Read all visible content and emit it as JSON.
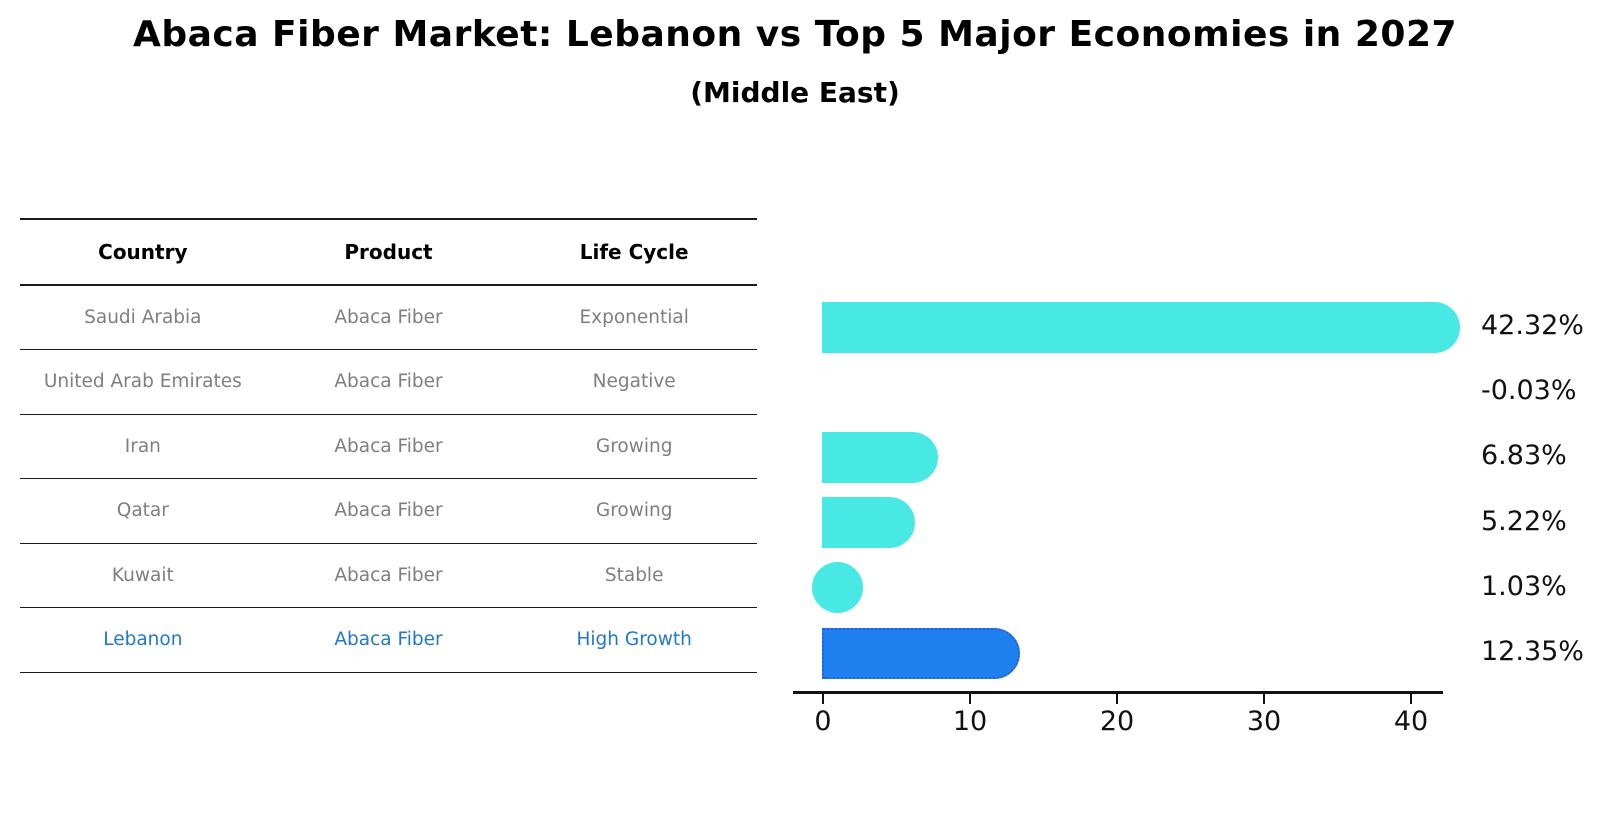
{
  "title": "Abaca Fiber Market: Lebanon vs Top 5 Major Economies in 2027",
  "subtitle": "(Middle East)",
  "table": {
    "headers": [
      "Country",
      "Product",
      "Life Cycle"
    ],
    "rows": [
      {
        "country": "Saudi Arabia",
        "product": "Abaca Fiber",
        "life_cycle": "Exponential",
        "highlight": false
      },
      {
        "country": "United Arab Emirates",
        "product": "Abaca Fiber",
        "life_cycle": "Negative",
        "highlight": false
      },
      {
        "country": "Iran",
        "product": "Abaca Fiber",
        "life_cycle": "Growing",
        "highlight": false
      },
      {
        "country": "Qatar",
        "product": "Abaca Fiber",
        "life_cycle": "Growing",
        "highlight": false
      },
      {
        "country": "Kuwait",
        "product": "Abaca Fiber",
        "life_cycle": "Stable",
        "highlight": false
      },
      {
        "country": "Lebanon",
        "product": "Abaca Fiber",
        "life_cycle": "High Growth",
        "highlight": true
      }
    ]
  },
  "chart_data": {
    "type": "bar",
    "orientation": "horizontal",
    "title": "Abaca Fiber Market: Lebanon vs Top 5 Major Economies in 2027",
    "subtitle": "(Middle East)",
    "categories": [
      "Saudi Arabia",
      "United Arab Emirates",
      "Iran",
      "Qatar",
      "Kuwait",
      "Lebanon"
    ],
    "values": [
      42.32,
      -0.03,
      6.83,
      5.22,
      1.03,
      12.35
    ],
    "value_labels": [
      "42.32%",
      "-0.03%",
      "6.83%",
      "5.22%",
      "1.03%",
      "12.35%"
    ],
    "x_ticks": [
      "0",
      "10",
      "20",
      "30",
      "40"
    ],
    "x_tick_values": [
      0,
      10,
      20,
      30,
      40
    ],
    "xlim": [
      -2.2,
      42.5
    ],
    "highlight_index": 5,
    "grid": false,
    "legend": "none"
  },
  "colors": {
    "bar": "#48e8e4",
    "highlight_bar": "#1e80ee",
    "highlight_border": "#2b5ed6",
    "highlight_text": "#2277c9",
    "muted_text": "#7f7f7f",
    "axis": "#111111"
  }
}
